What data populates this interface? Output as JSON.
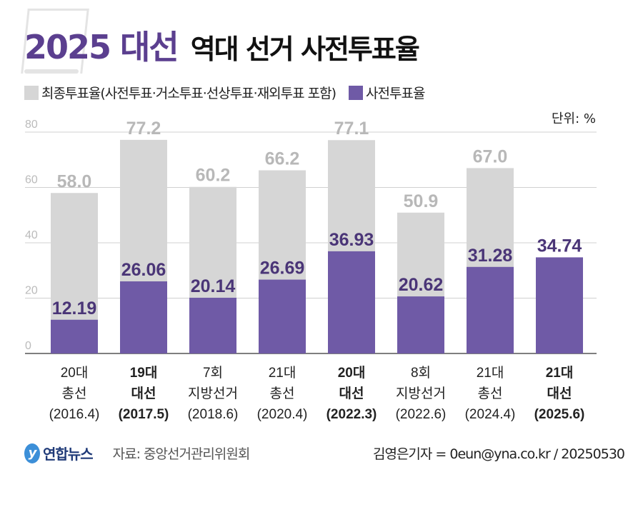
{
  "header": {
    "title_highlight": "2025 대선",
    "title_rest": "역대 선거 사전투표율"
  },
  "colors": {
    "total": "#d6d6d6",
    "early": "#6f5aa6",
    "total_label": "#b8b8b8",
    "early_label": "#4a3577",
    "grid": "#d0d0d0"
  },
  "chart_data": {
    "type": "bar",
    "unit_label": "단위: %",
    "ylim": [
      0,
      80
    ],
    "yticks": [
      "0",
      "20",
      "40",
      "60",
      "80"
    ],
    "grid": true,
    "legend_position": "top-left",
    "categories": [
      {
        "lines": [
          "20대",
          "총선",
          "(2016.4)"
        ],
        "bold": false
      },
      {
        "lines": [
          "19대",
          "대선",
          "(2017.5)"
        ],
        "bold": true
      },
      {
        "lines": [
          "7회",
          "지방선거",
          "(2018.6)"
        ],
        "bold": false
      },
      {
        "lines": [
          "21대",
          "총선",
          "(2020.4)"
        ],
        "bold": false
      },
      {
        "lines": [
          "20대",
          "대선",
          "(2022.3)"
        ],
        "bold": true
      },
      {
        "lines": [
          "8회",
          "지방선거",
          "(2022.6)"
        ],
        "bold": false
      },
      {
        "lines": [
          "21대",
          "총선",
          "(2024.4)"
        ],
        "bold": false
      },
      {
        "lines": [
          "21대",
          "대선",
          "(2025.6)"
        ],
        "bold": true
      }
    ],
    "series": [
      {
        "name": "최종투표율(사전투표·거소투표·선상투표·재외투표 포함)",
        "values": [
          58.0,
          77.2,
          60.2,
          66.2,
          77.1,
          50.9,
          67.0,
          null
        ],
        "labels": [
          "58.0",
          "77.2",
          "60.2",
          "66.2",
          "77.1",
          "50.9",
          "67.0",
          ""
        ]
      },
      {
        "name": "사전투표율",
        "values": [
          12.19,
          26.06,
          20.14,
          26.69,
          36.93,
          20.62,
          31.28,
          34.74
        ],
        "labels": [
          "12.19",
          "26.06",
          "20.14",
          "26.69",
          "36.93",
          "20.62",
          "31.28",
          "34.74"
        ]
      }
    ]
  },
  "footer": {
    "logo": "연합뉴스",
    "source": "자료: 중앙선거관리위원회",
    "credit": "김영은기자 = 0eun@yna.co.kr / 20250530"
  }
}
